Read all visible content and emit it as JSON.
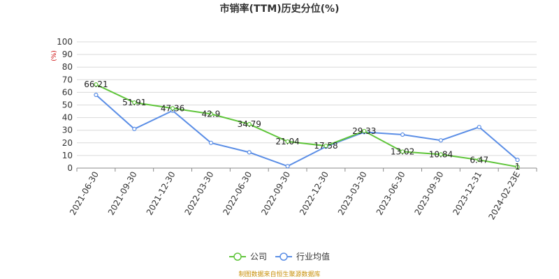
{
  "chart_data": {
    "type": "line",
    "title": "市销率(TTM)历史分位(%)",
    "ylabel": "(%)",
    "xlabel": "",
    "ylim": [
      0,
      100
    ],
    "yticks": [
      0,
      10,
      20,
      30,
      40,
      50,
      60,
      70,
      80,
      90,
      100
    ],
    "grid": true,
    "legend_position": "bottom",
    "categories": [
      "2021-06-30",
      "2021-09-30",
      "2021-12-30",
      "2022-03-30",
      "2022-06-30",
      "2022-09-30",
      "2022-12-30",
      "2023-03-30",
      "2023-06-30",
      "2023-09-30",
      "2023-12-31",
      "2024-02-23E"
    ],
    "series": [
      {
        "name": "公司",
        "color": "#5fc53a",
        "values": [
          66.21,
          51.91,
          47.36,
          42.9,
          34.79,
          21.04,
          17.58,
          29.33,
          13.02,
          10.84,
          6.47,
          1
        ],
        "labels": [
          "66.21",
          "51.91",
          "47.36",
          "42.9",
          "34.79",
          "21.04",
          "17.58",
          "29.33",
          "13.02",
          "10.84",
          "6.47",
          "1"
        ]
      },
      {
        "name": "行业均值",
        "color": "#5b8ee6",
        "values": [
          58,
          31,
          45.5,
          20,
          12.5,
          1.5,
          17,
          28.5,
          26.5,
          22,
          32.5,
          6.5
        ]
      }
    ],
    "source": "制图数据来自恒生聚源数据库"
  }
}
